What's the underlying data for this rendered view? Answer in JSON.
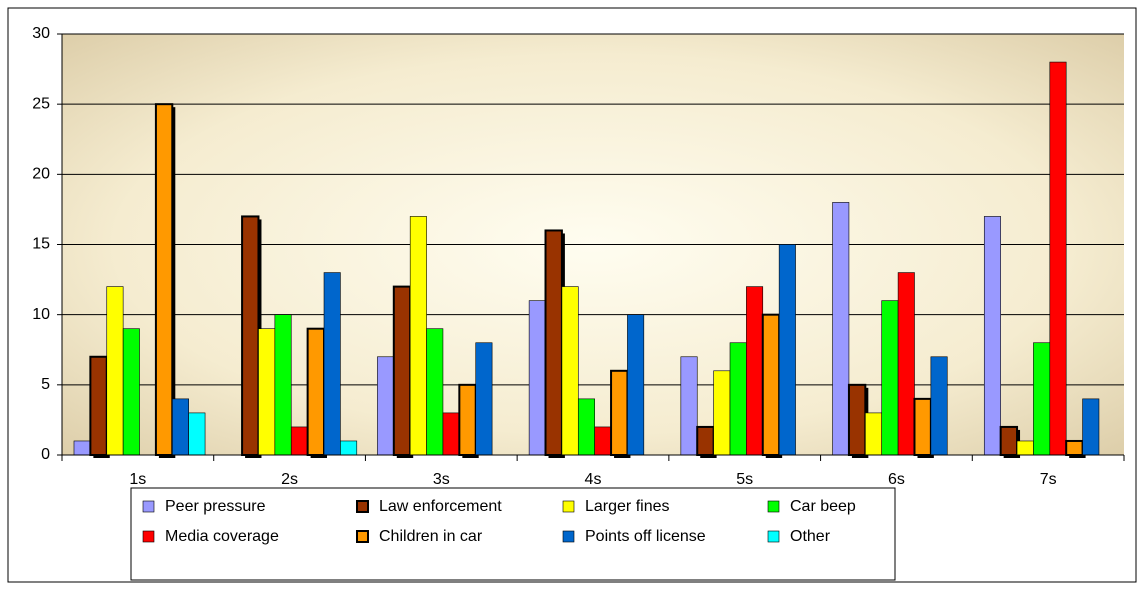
{
  "chart_data": {
    "type": "bar",
    "categories": [
      "1s",
      "2s",
      "3s",
      "4s",
      "5s",
      "6s",
      "7s"
    ],
    "series": [
      {
        "name": "Peer pressure",
        "color": "#9999ff",
        "values": [
          1,
          0,
          7,
          11,
          7,
          18,
          17
        ]
      },
      {
        "name": "Law enforcement",
        "color": "#993300",
        "values": [
          7,
          17,
          12,
          16,
          2,
          5,
          2
        ]
      },
      {
        "name": "Larger fines",
        "color": "#ffff00",
        "values": [
          12,
          9,
          17,
          12,
          6,
          3,
          1
        ]
      },
      {
        "name": "Car beep",
        "color": "#00ff00",
        "values": [
          9,
          10,
          9,
          4,
          8,
          11,
          8
        ]
      },
      {
        "name": "Media coverage",
        "color": "#ff0000",
        "values": [
          0,
          2,
          3,
          2,
          12,
          13,
          28
        ]
      },
      {
        "name": "Children in car",
        "color": "#ff9900",
        "values": [
          25,
          9,
          5,
          6,
          10,
          4,
          1
        ]
      },
      {
        "name": "Points off license",
        "color": "#0066cc",
        "values": [
          4,
          13,
          8,
          10,
          15,
          7,
          4
        ]
      },
      {
        "name": "Other",
        "color": "#00ffff",
        "values": [
          3,
          1,
          0,
          0,
          0,
          0,
          0
        ]
      }
    ],
    "ylim": [
      0,
      30
    ],
    "yticks": [
      0,
      5,
      10,
      15,
      20,
      25,
      30
    ],
    "grid": true,
    "legend": "bottom"
  }
}
